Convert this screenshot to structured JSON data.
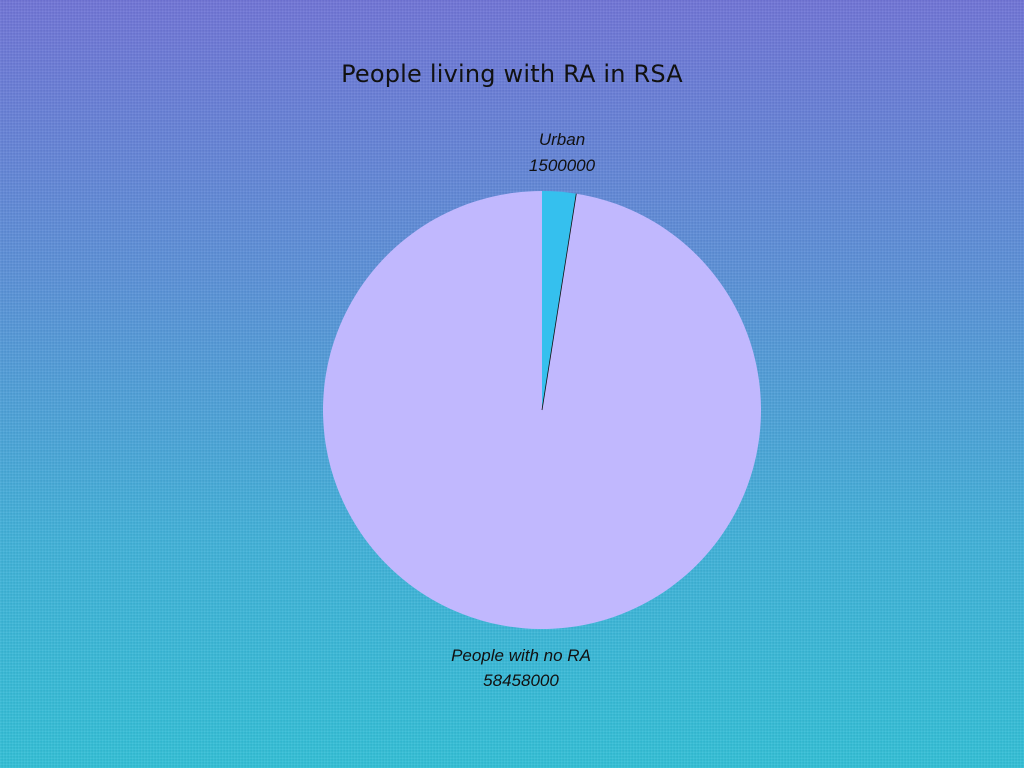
{
  "chart_data": {
    "type": "pie",
    "title": "People living with RA in RSA",
    "slices": [
      {
        "label": "Urban",
        "value": 1500000,
        "value_text": "1500000",
        "color": "#35c0ee"
      },
      {
        "label": "People with no RA",
        "value": 58458000,
        "value_text": "58458000",
        "color": "#c1b8fe"
      }
    ],
    "start_angle_deg": 0,
    "direction": "clockwise"
  },
  "colors": {
    "background_top": "#6f73d6",
    "background_bottom": "#30bfd6",
    "text": "#111111"
  }
}
